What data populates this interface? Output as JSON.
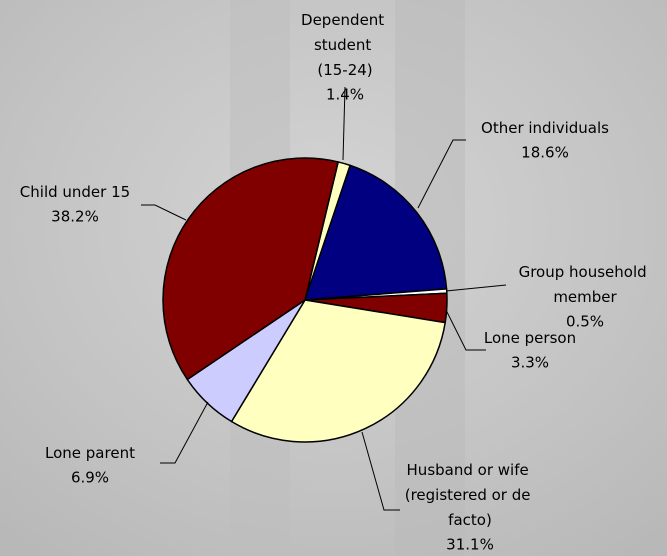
{
  "chart_data": {
    "type": "pie",
    "categories": [
      "Dependent student (15-24)",
      "Other individuals",
      "Group household member",
      "Lone person",
      "Husband or wife (registered or de facto)",
      "Lone parent",
      "Child under 15"
    ],
    "values": [
      1.4,
      18.6,
      0.5,
      3.3,
      31.1,
      6.9,
      38.2
    ],
    "value_labels": [
      "1.4%",
      "18.6%",
      "0.5%",
      "3.3%",
      "31.1%",
      "6.9%",
      "38.2%"
    ],
    "colors": [
      "#ffffc0",
      "#000080",
      "#ffffff",
      "#800000",
      "#ffffc0",
      "#ccccff",
      "#800000"
    ]
  }
}
